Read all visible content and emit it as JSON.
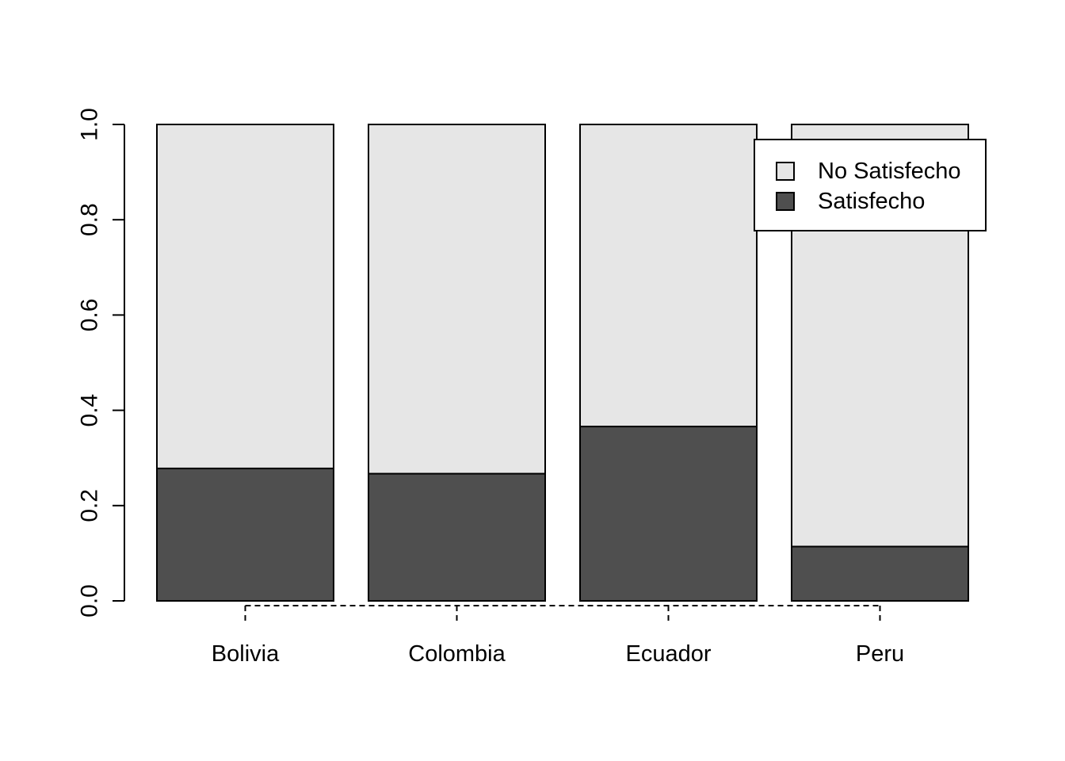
{
  "colors": {
    "satisfied": "#4f4f4f",
    "not_satisfied": "#e6e6e6",
    "stroke": "#000000",
    "background": "#ffffff"
  },
  "chart_data": {
    "type": "bar",
    "stacked": true,
    "categories": [
      "Bolivia",
      "Colombia",
      "Ecuador",
      "Peru"
    ],
    "series": [
      {
        "name": "Satisfecho",
        "values": [
          0.278,
          0.267,
          0.366,
          0.114
        ]
      },
      {
        "name": "No Satisfecho",
        "values": [
          0.722,
          0.733,
          0.634,
          0.886
        ]
      }
    ],
    "title": "",
    "xlabel": "",
    "ylabel": "",
    "ylim": [
      0,
      1
    ],
    "yticks": [
      "0.0",
      "0.2",
      "0.4",
      "0.6",
      "0.8",
      "1.0"
    ],
    "legend": {
      "position": "top-right",
      "entries": [
        "No Satisfecho",
        "Satisfecho"
      ]
    },
    "grid": false
  }
}
